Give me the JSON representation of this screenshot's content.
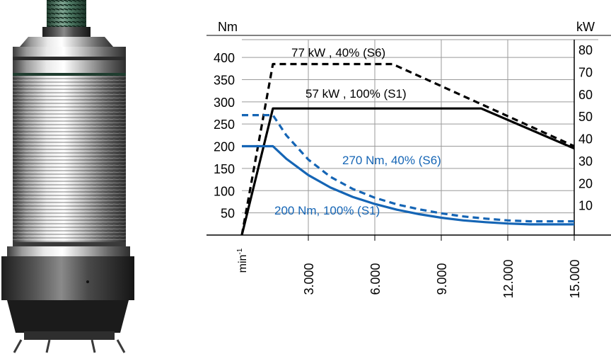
{
  "chart_data": {
    "type": "line",
    "title": "",
    "x_axis": {
      "unit_label": "min-1",
      "range": [
        0,
        15000
      ],
      "ticks": [
        {
          "value": 3000,
          "label": "3.000"
        },
        {
          "value": 6000,
          "label": "6.000"
        },
        {
          "value": 9000,
          "label": "9.000"
        },
        {
          "value": 12000,
          "label": "12.000"
        },
        {
          "value": 15000,
          "label": "15.000"
        }
      ]
    },
    "y_left": {
      "unit_label": "Nm",
      "range": [
        0,
        440
      ],
      "ticks": [
        {
          "value": 50,
          "label": "50"
        },
        {
          "value": 100,
          "label": "100"
        },
        {
          "value": 150,
          "label": "150"
        },
        {
          "value": 200,
          "label": "200"
        },
        {
          "value": 250,
          "label": "250"
        },
        {
          "value": 300,
          "label": "300"
        },
        {
          "value": 350,
          "label": "350"
        },
        {
          "value": 400,
          "label": "400"
        }
      ]
    },
    "y_right": {
      "unit_label": "kW",
      "range": [
        0,
        88
      ],
      "ticks": [
        {
          "value": 10,
          "label": "10"
        },
        {
          "value": 20,
          "label": "20"
        },
        {
          "value": 30,
          "label": "30"
        },
        {
          "value": 40,
          "label": "40"
        },
        {
          "value": 50,
          "label": "50"
        },
        {
          "value": 60,
          "label": "60"
        },
        {
          "value": 70,
          "label": "70"
        },
        {
          "value": 80,
          "label": "80"
        }
      ]
    },
    "grid": true,
    "series": [
      {
        "name": "77 kW , 40% (S6)",
        "quantity": "power",
        "axis": "right",
        "color": "#000000",
        "dashed": true,
        "points": [
          [
            0,
            0
          ],
          [
            1400,
            77
          ],
          [
            6800,
            77
          ],
          [
            15000,
            40
          ]
        ]
      },
      {
        "name": "57 kW , 100% (S1)",
        "quantity": "power",
        "axis": "right",
        "color": "#000000",
        "dashed": false,
        "points": [
          [
            0,
            0
          ],
          [
            1400,
            57
          ],
          [
            10800,
            57
          ],
          [
            15000,
            39
          ]
        ]
      },
      {
        "name": "270 Nm, 40% (S6)",
        "quantity": "torque",
        "axis": "left",
        "color": "#1565b5",
        "dashed": true,
        "points": [
          [
            0,
            270
          ],
          [
            1400,
            270
          ],
          [
            2000,
            225
          ],
          [
            3000,
            170
          ],
          [
            4000,
            131
          ],
          [
            5000,
            104
          ],
          [
            6000,
            84
          ],
          [
            7000,
            69
          ],
          [
            8000,
            58
          ],
          [
            9000,
            49
          ],
          [
            10000,
            42
          ],
          [
            11000,
            37
          ],
          [
            12000,
            33
          ],
          [
            13000,
            31
          ],
          [
            14000,
            31
          ],
          [
            15000,
            31
          ]
        ]
      },
      {
        "name": "200 Nm, 100% (S1)",
        "quantity": "torque",
        "axis": "left",
        "color": "#1565b5",
        "dashed": false,
        "points": [
          [
            0,
            200
          ],
          [
            1400,
            200
          ],
          [
            2000,
            172
          ],
          [
            3000,
            135
          ],
          [
            4000,
            107
          ],
          [
            5000,
            86
          ],
          [
            6000,
            70
          ],
          [
            7000,
            57
          ],
          [
            8000,
            47
          ],
          [
            9000,
            39
          ],
          [
            10000,
            33
          ],
          [
            11000,
            29
          ],
          [
            12000,
            26
          ],
          [
            13000,
            24
          ],
          [
            14000,
            24
          ],
          [
            15000,
            24
          ]
        ]
      }
    ]
  },
  "colors": {
    "power": "#000000",
    "torque": "#1565b5",
    "grid": "#9a9a9a"
  },
  "image": {
    "subject": "spindle-motor-photo"
  }
}
